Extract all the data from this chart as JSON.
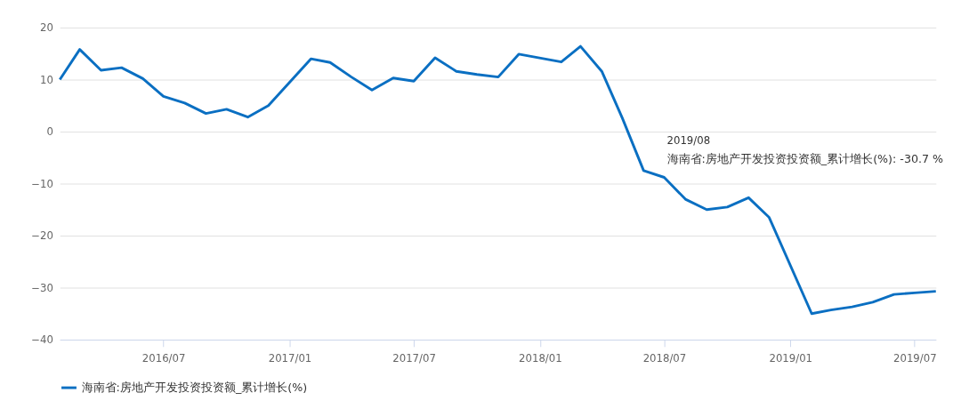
{
  "chart_data": {
    "type": "line",
    "x": [
      "2016-02",
      "2016-03",
      "2016-04",
      "2016-05",
      "2016-06",
      "2016-07",
      "2016-08",
      "2016-09",
      "2016-10",
      "2016-11",
      "2016-12",
      "2017-02",
      "2017-03",
      "2017-04",
      "2017-05",
      "2017-06",
      "2017-07",
      "2017-08",
      "2017-09",
      "2017-10",
      "2017-11",
      "2017-12",
      "2018-02",
      "2018-03",
      "2018-04",
      "2018-05",
      "2018-06",
      "2018-07",
      "2018-08",
      "2018-09",
      "2018-10",
      "2018-11",
      "2018-12",
      "2019-02",
      "2019-03",
      "2019-04",
      "2019-05",
      "2019-06",
      "2019-07",
      "2019-08"
    ],
    "series": [
      {
        "name": "海南省:房地产开发投资投资额_累计增长(%)",
        "color": "#0a6fc2",
        "values": [
          10,
          15.8,
          11.8,
          12.3,
          10.2,
          6.8,
          5.5,
          3.5,
          4.3,
          2.8,
          5,
          14,
          13.3,
          10.5,
          8,
          10.3,
          9.7,
          14.2,
          11.6,
          11,
          10.5,
          14.9,
          13.4,
          16.4,
          11.6,
          2.6,
          -7.5,
          -8.8,
          -13,
          -15,
          -14.5,
          -12.7,
          -16.5,
          -35,
          -34.3,
          -33.7,
          -32.8,
          -31.3,
          -31,
          -30.7
        ]
      }
    ],
    "xlim": [
      "2016-02",
      "2019-08"
    ],
    "xticks": [
      {
        "value": "2016-07",
        "label": "2016/07"
      },
      {
        "value": "2017-01",
        "label": "2017/01"
      },
      {
        "value": "2017-07",
        "label": "2017/07"
      },
      {
        "value": "2018-01",
        "label": "2018/01"
      },
      {
        "value": "2018-07",
        "label": "2018/07"
      },
      {
        "value": "2019-01",
        "label": "2019/01"
      },
      {
        "value": "2019-07",
        "label": "2019/07"
      }
    ],
    "ylim": [
      -40,
      20
    ],
    "yticks": [
      -40,
      -30,
      -20,
      -10,
      0,
      10,
      20
    ],
    "grid": "y",
    "legend": "bottom",
    "marker": "none",
    "line_style": "solid",
    "annotations": [
      "2019/08",
      "海南省:房地产开发投资投资额_累计增长(%): -30.7 %"
    ]
  }
}
